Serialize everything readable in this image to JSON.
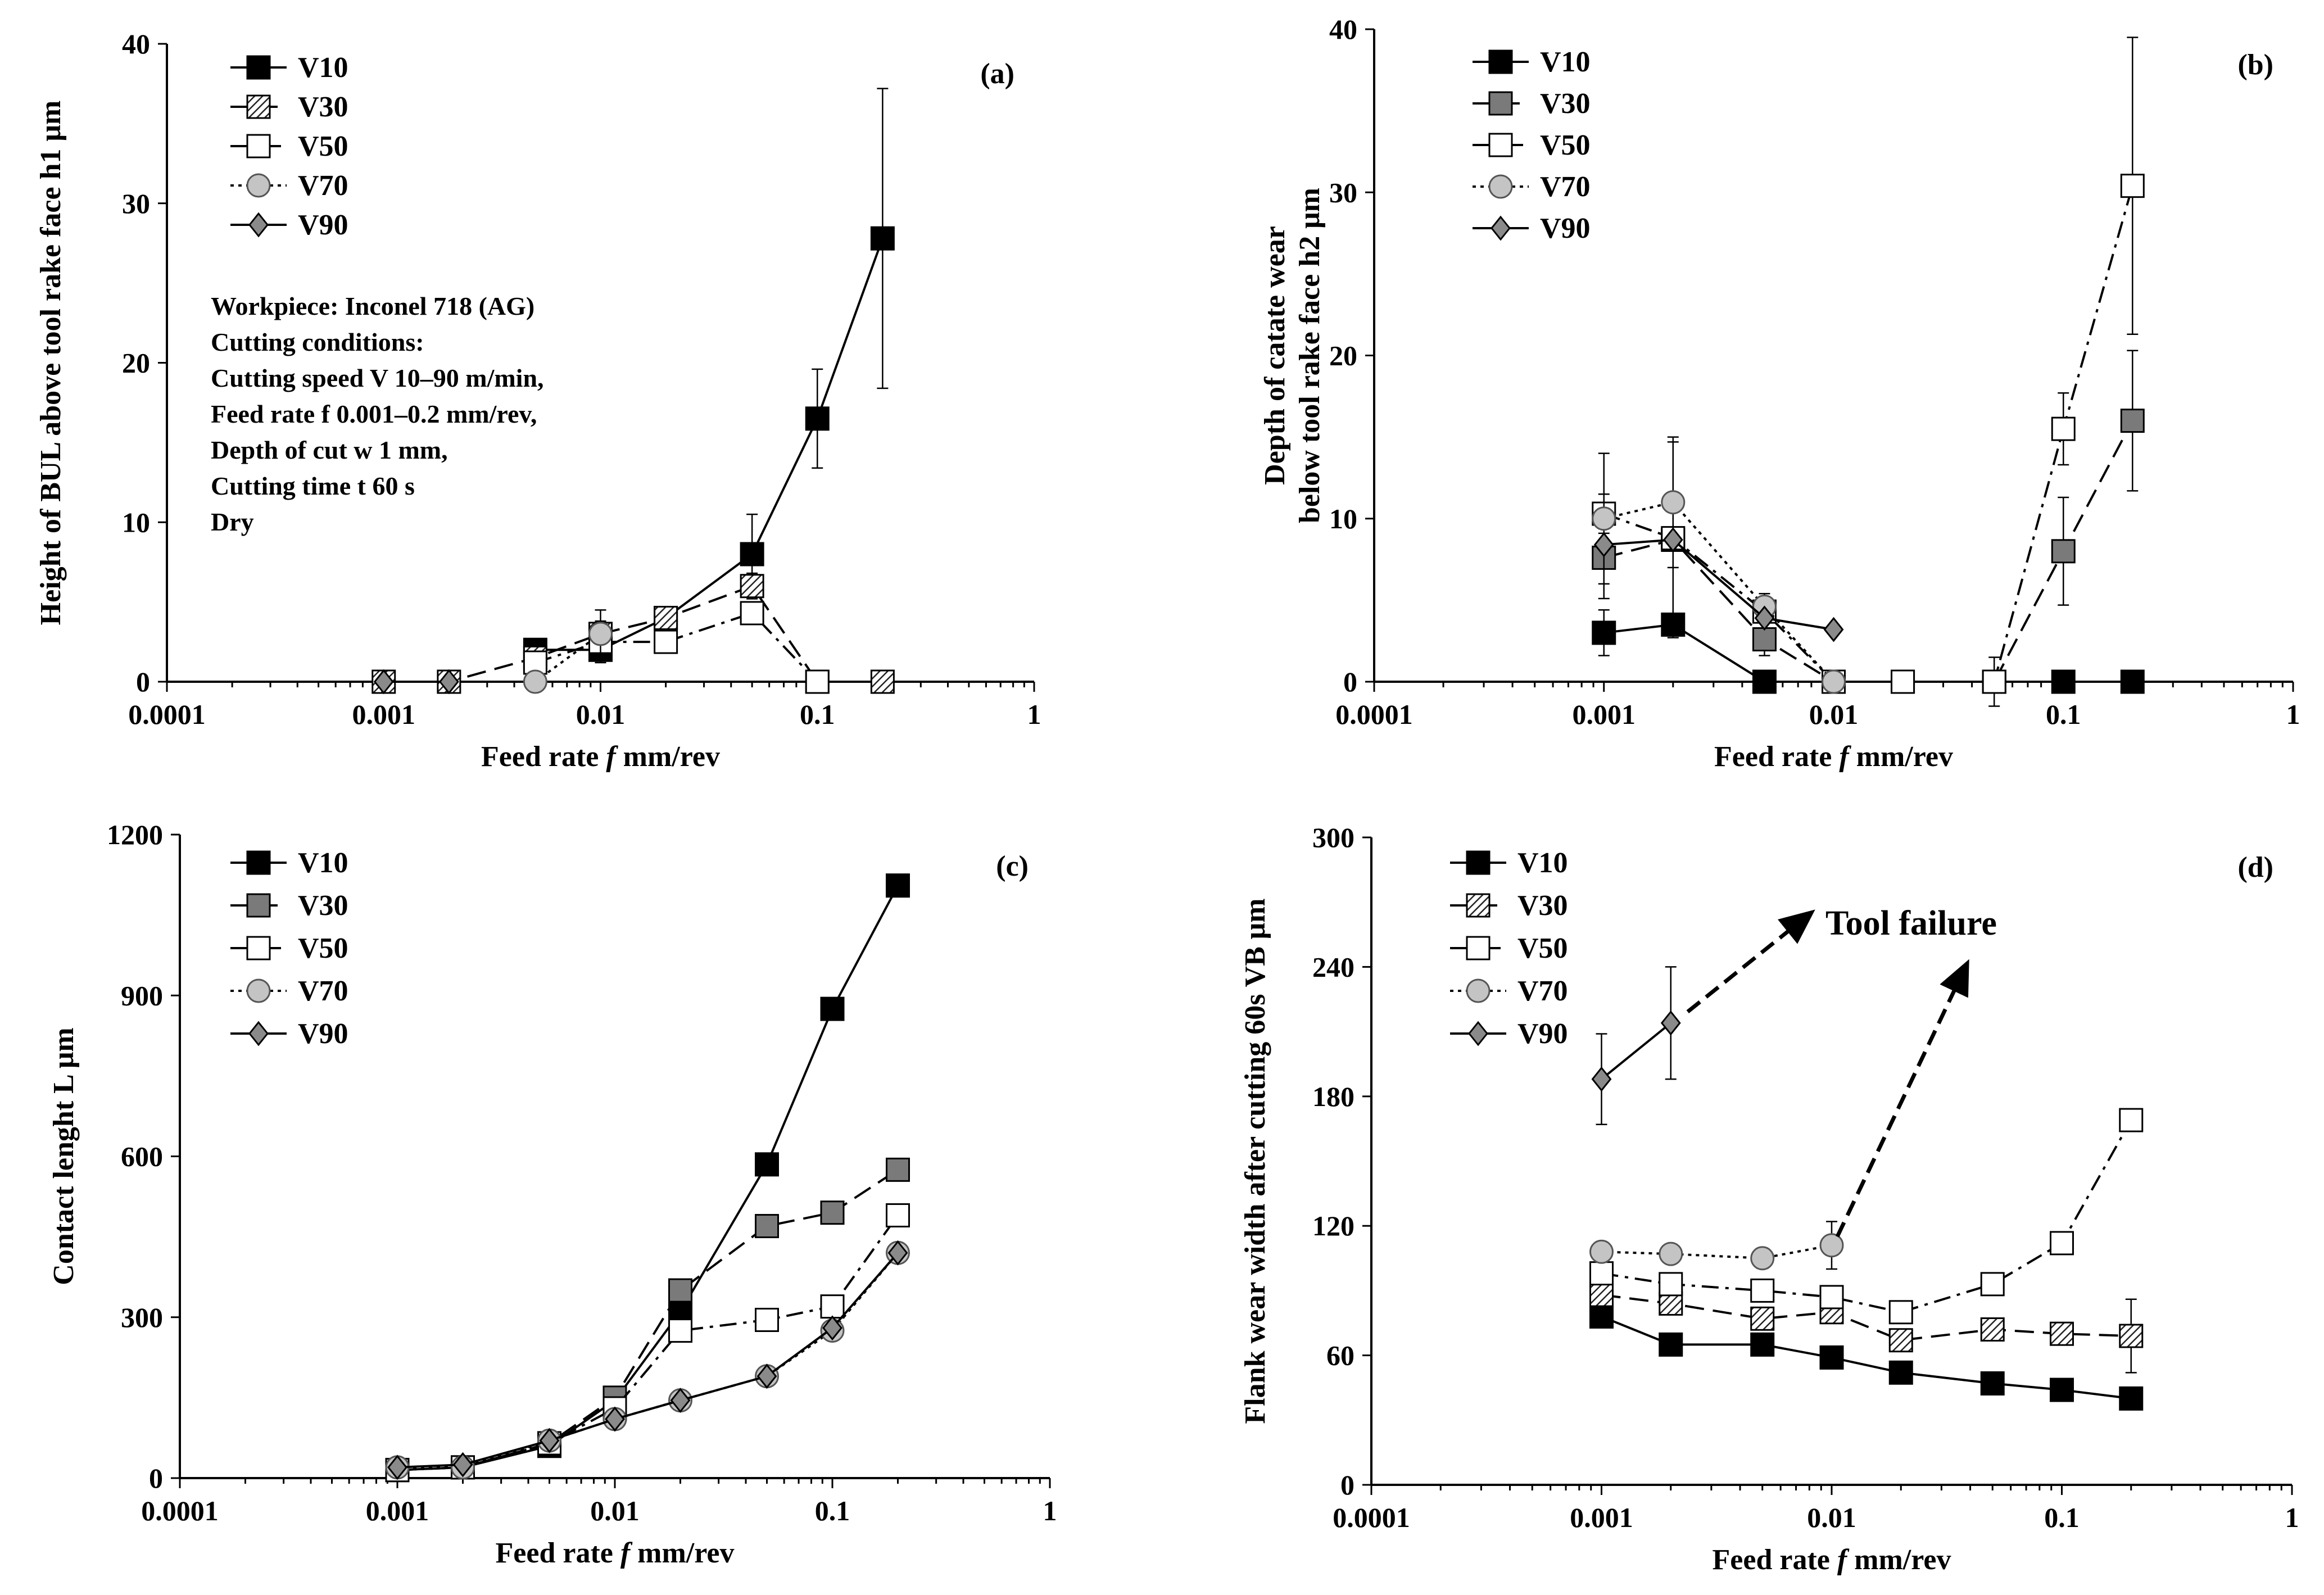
{
  "chart_data": [
    {
      "type": "line",
      "panel_label": "(a)",
      "x_scale": "log",
      "xlim": [
        0.0001,
        1
      ],
      "ylim": [
        0,
        40
      ],
      "xticks": [
        "0.0001",
        "0.001",
        "0.01",
        "0.1",
        "1"
      ],
      "yticks": [
        "0",
        "10",
        "20",
        "30",
        "40"
      ],
      "xlabel": "Feed rate f mm/rev",
      "ylabel": "Height of BUL above tool rake face h1 μm",
      "legend_position": "top-left",
      "annotation_lines": [
        "Workpiece: Inconel 718 (AG)",
        "Cutting conditions:",
        "Cutting speed V 10–90 m/min,",
        "Feed rate f 0.001–0.2 mm/rev,",
        "Depth of cut w 1 mm,",
        "Cutting time t 60 s",
        "Dry"
      ],
      "series": [
        {
          "name": "V10",
          "marker": "square-black",
          "dash": "solid",
          "x": [
            0.005,
            0.01,
            0.02,
            0.05,
            0.1,
            0.2
          ],
          "y": [
            2,
            2,
            4,
            8,
            16.5,
            27.8
          ],
          "err": [
            0.5,
            0.8,
            0.6,
            2.5,
            3.1,
            9.4
          ]
        },
        {
          "name": "V30",
          "marker": "square-hatch",
          "dash": "long-dash",
          "x": [
            0.001,
            0.002,
            0.005,
            0.01,
            0.02,
            0.05,
            0.1,
            0.2
          ],
          "y": [
            0,
            0,
            1.5,
            3,
            4,
            6,
            0,
            0
          ],
          "err": [
            0,
            0,
            0,
            0.8,
            0.6,
            0.8,
            0,
            0
          ]
        },
        {
          "name": "V50",
          "marker": "square-open",
          "dash": "dash-dot",
          "x": [
            0.005,
            0.01,
            0.02,
            0.05,
            0.1
          ],
          "y": [
            1.2,
            2.5,
            2.5,
            4.3,
            0
          ],
          "err": [
            0,
            0,
            0,
            0.5,
            0
          ]
        },
        {
          "name": "V70",
          "marker": "circle-grey",
          "dash": "dotted",
          "x": [
            0.005,
            0.01
          ],
          "y": [
            0,
            3
          ],
          "err": [
            0,
            1.5
          ]
        },
        {
          "name": "V90",
          "marker": "diamond-grey",
          "dash": "solid",
          "x": [
            0.001,
            0.002
          ],
          "y": [
            0,
            0
          ],
          "err": [
            0,
            0
          ]
        }
      ]
    },
    {
      "type": "line",
      "panel_label": "(b)",
      "x_scale": "log",
      "xlim": [
        0.0001,
        1
      ],
      "ylim": [
        0,
        40
      ],
      "xticks": [
        "0.0001",
        "0.001",
        "0.01",
        "0.1",
        "1"
      ],
      "yticks": [
        "0",
        "10",
        "20",
        "30",
        "40"
      ],
      "xlabel": "Feed rate f mm/rev",
      "ylabel_lines": [
        "Depth of catate wear",
        "below tool rake face h2 μm"
      ],
      "legend_position": "top-left",
      "series": [
        {
          "name": "V10",
          "marker": "square-black",
          "dash": "solid",
          "x": [
            0.001,
            0.002,
            0.005,
            0.01,
            0.02,
            0.05,
            0.1,
            0.2
          ],
          "y": [
            3,
            3.5,
            0,
            0,
            0,
            0,
            0,
            0
          ],
          "err": [
            1.4,
            0,
            0,
            0,
            0,
            0,
            0,
            0
          ]
        },
        {
          "name": "V30",
          "marker": "square-grey",
          "dash": "long-dash",
          "x": [
            0.001,
            0.002,
            0.005,
            0.01,
            0.02,
            0.05,
            0.1,
            0.2
          ],
          "y": [
            7.6,
            8.7,
            2.6,
            0,
            0,
            0,
            8,
            16
          ],
          "err": [
            2.5,
            6,
            1,
            0,
            0,
            0,
            3.3,
            4.3
          ]
        },
        {
          "name": "V50",
          "marker": "square-open",
          "dash": "dash-dot",
          "x": [
            0.001,
            0.002,
            0.005,
            0.01,
            0.02,
            0.05,
            0.1,
            0.2
          ],
          "y": [
            10.3,
            8.8,
            4.3,
            0,
            0,
            0,
            15.5,
            30.4
          ],
          "err": [
            1.2,
            0,
            0,
            0,
            0,
            1.5,
            2.2,
            9.1
          ]
        },
        {
          "name": "V70",
          "marker": "circle-grey",
          "dash": "dotted",
          "x": [
            0.001,
            0.002,
            0.005,
            0.01
          ],
          "y": [
            10,
            11,
            4.6,
            0
          ],
          "err": [
            4,
            4,
            0.8,
            0
          ]
        },
        {
          "name": "V90",
          "marker": "diamond-grey",
          "dash": "solid",
          "x": [
            0.001,
            0.002,
            0.005,
            0.01
          ],
          "y": [
            8.4,
            8.7,
            3.9,
            3.2
          ],
          "err": [
            0,
            0,
            0,
            0
          ]
        }
      ]
    },
    {
      "type": "line",
      "panel_label": "(c)",
      "x_scale": "log",
      "xlim": [
        0.0001,
        1
      ],
      "ylim": [
        0,
        1200
      ],
      "xticks": [
        "0.0001",
        "0.001",
        "0.01",
        "0.1",
        "1"
      ],
      "yticks": [
        "0",
        "300",
        "600",
        "900",
        "1200"
      ],
      "xlabel": "Feed rate f mm/rev",
      "ylabel": "Contact lenght L μm",
      "legend_position": "top-left",
      "series": [
        {
          "name": "V10",
          "marker": "square-black",
          "dash": "solid",
          "x": [
            0.001,
            0.002,
            0.005,
            0.01,
            0.02,
            0.05,
            0.1,
            0.2
          ],
          "y": [
            15,
            20,
            60,
            145,
            310,
            585,
            875,
            1105
          ],
          "err": [
            0,
            0,
            0,
            0,
            0,
            0,
            0,
            0
          ]
        },
        {
          "name": "V30",
          "marker": "square-grey",
          "dash": "long-dash",
          "x": [
            0.001,
            0.002,
            0.005,
            0.01,
            0.02,
            0.05,
            0.1,
            0.2
          ],
          "y": [
            15,
            20,
            65,
            150,
            350,
            470,
            495,
            575
          ],
          "err": [
            0,
            0,
            0,
            0,
            0,
            0,
            0,
            0
          ]
        },
        {
          "name": "V50",
          "marker": "square-open",
          "dash": "dash-dot",
          "x": [
            0.001,
            0.002,
            0.005,
            0.01,
            0.02,
            0.05,
            0.1,
            0.2
          ],
          "y": [
            15,
            20,
            65,
            130,
            275,
            295,
            320,
            490
          ],
          "err": [
            0,
            0,
            0,
            0,
            0,
            0,
            0,
            0
          ]
        },
        {
          "name": "V70",
          "marker": "circle-grey",
          "dash": "dotted",
          "x": [
            0.001,
            0.002,
            0.005,
            0.01,
            0.02,
            0.05,
            0.1,
            0.2
          ],
          "y": [
            20,
            20,
            70,
            110,
            145,
            190,
            275,
            420
          ],
          "err": [
            0,
            0,
            0,
            0,
            0,
            0,
            0,
            0
          ]
        },
        {
          "name": "V90",
          "marker": "diamond-grey",
          "dash": "solid",
          "x": [
            0.001,
            0.002,
            0.005,
            0.01,
            0.02,
            0.05,
            0.1,
            0.2
          ],
          "y": [
            20,
            25,
            70,
            110,
            145,
            190,
            280,
            420
          ],
          "err": [
            0,
            0,
            0,
            0,
            0,
            0,
            0,
            0
          ]
        }
      ]
    },
    {
      "type": "line",
      "panel_label": "(d)",
      "x_scale": "log",
      "xlim": [
        0.0001,
        1
      ],
      "ylim": [
        0,
        300
      ],
      "xticks": [
        "0.0001",
        "0.001",
        "0.01",
        "0.1",
        "1"
      ],
      "yticks": [
        "0",
        "60",
        "120",
        "180",
        "240",
        "300"
      ],
      "xlabel": "Feed rate f mm/rev",
      "ylabel": "Flank wear width after cutting 60s VB μm",
      "legend_position": "top-left",
      "annotation": "Tool failure",
      "series": [
        {
          "name": "V10",
          "marker": "square-black",
          "dash": "solid",
          "x": [
            0.001,
            0.002,
            0.005,
            0.01,
            0.02,
            0.05,
            0.1,
            0.2
          ],
          "y": [
            78,
            65,
            65,
            59,
            52,
            47,
            44,
            40
          ],
          "err": [
            0,
            0,
            0,
            0,
            0,
            0,
            0,
            0
          ]
        },
        {
          "name": "V30",
          "marker": "square-hatch",
          "dash": "long-dash",
          "x": [
            0.001,
            0.002,
            0.005,
            0.01,
            0.02,
            0.05,
            0.1,
            0.2
          ],
          "y": [
            88,
            84,
            77,
            80,
            67,
            72,
            70,
            69
          ],
          "err": [
            0,
            0,
            0,
            0,
            0,
            0,
            0,
            17
          ]
        },
        {
          "name": "V50",
          "marker": "square-open",
          "dash": "dash-dot",
          "x": [
            0.001,
            0.002,
            0.005,
            0.01,
            0.02,
            0.05,
            0.1,
            0.2
          ],
          "y": [
            98,
            93,
            90,
            87,
            80,
            93,
            112,
            169
          ],
          "err": [
            0,
            0,
            0,
            0,
            0,
            0,
            0,
            0
          ]
        },
        {
          "name": "V70",
          "marker": "circle-grey",
          "dash": "dotted",
          "x": [
            0.001,
            0.002,
            0.005,
            0.01
          ],
          "y": [
            108,
            107,
            105,
            111
          ],
          "err": [
            0,
            0,
            0,
            11
          ]
        },
        {
          "name": "V90",
          "marker": "diamond-grey",
          "dash": "solid",
          "x": [
            0.001,
            0.002
          ],
          "y": [
            188,
            214
          ],
          "err": [
            21,
            26
          ]
        }
      ]
    }
  ]
}
